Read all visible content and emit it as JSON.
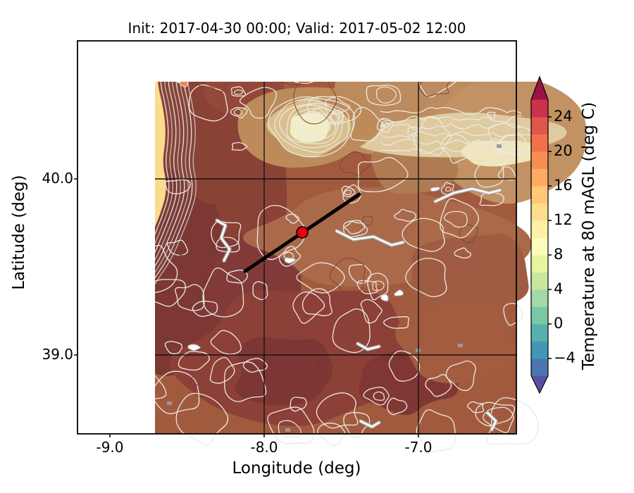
{
  "figure": {
    "title": "Init: 2017-04-30 00:00; Valid: 2017-05-02 12:00"
  },
  "axes": {
    "xlabel": "Longitude (deg)",
    "ylabel": "Latitude (deg)",
    "xticks": [
      "-9.0",
      "-8.0",
      "-7.0"
    ],
    "yticks": [
      "40.0",
      "39.0"
    ]
  },
  "colorbar": {
    "label": "Temperature at 80 mAGL (deg C)",
    "tick_labels": [
      "24",
      "20",
      "16",
      "12",
      "8",
      "4",
      "0",
      "−4"
    ],
    "tick_values": [
      24,
      20,
      16,
      12,
      8,
      4,
      0,
      -4
    ],
    "band_colors_bottom_to_top": [
      "#4a77b3",
      "#4197b5",
      "#58b2ab",
      "#79c8a5",
      "#a3d9a4",
      "#c8e79e",
      "#e7f5a2",
      "#fbfcba",
      "#fef0a5",
      "#fede8d",
      "#fec877",
      "#fdaa63",
      "#f98e55",
      "#f2714b",
      "#e25549",
      "#cb334d"
    ],
    "arrow_top_color": "#9c1148",
    "arrow_bottom_color": "#5852a4"
  },
  "chart_data": {
    "type": "heatmap",
    "subtype": "filled-contour-map",
    "title": "Init: 2017-04-30 00:00; Valid: 2017-05-02 12:00",
    "xlabel": "Longitude (deg)",
    "ylabel": "Latitude (deg)",
    "xlim": [
      -9.21,
      -6.33
    ],
    "ylim": [
      38.55,
      40.78
    ],
    "xticks": [
      -9.0,
      -8.0,
      -7.0
    ],
    "yticks": [
      40.0,
      39.0
    ],
    "grid": true,
    "colorbar": {
      "label": "Temperature at 80 mAGL (deg C)",
      "ticks": [
        24,
        20,
        16,
        12,
        8,
        4,
        0,
        -4
      ],
      "range": [
        -6,
        26
      ],
      "band_step": 2,
      "extend": "both",
      "colormap": "Spectral_r"
    },
    "field_summary": "Temperature at 80 m AGL: ~12-14 C (pale yellow) over the Atlantic along the west edge, ~16-18 C (orange) in a coastal patch near (-8.8, 38.8), ~18-26 C (tan to dark red-brown) over inland Iberia; dense white terrain/temperature contour lines; pale cool mountain cores near (-7.95, 40.3) and the north-east ridge",
    "overlays": {
      "cross_section_line": {
        "from_lonlat": [
          -8.12,
          39.47
        ],
        "to_lonlat": [
          -7.38,
          39.91
        ],
        "color": "#000000"
      },
      "marker": {
        "lonlat": [
          -7.75,
          39.7
        ],
        "shape": "circle",
        "fill": "#e8000b",
        "edge": "#000000"
      }
    },
    "map_colors": {
      "ocean": "#fbdc8c",
      "land_base": "#a25a3e",
      "dark_regions": [
        "#8a4136",
        "#7d3834",
        "#813a38",
        "#8c4038",
        "#7e3634",
        "#803734"
      ],
      "tan_regions": [
        "#bd8b60",
        "#c29264",
        "#b07a52"
      ],
      "pale_regions": [
        "#dfcb9f",
        "#efe4bb",
        "#d9c08e",
        "#f2efc3"
      ],
      "warm_orange": "#f6854c",
      "contour_light": "#ece9e1",
      "contour_dark": "#7a452f",
      "coast_line": "#b2afa8",
      "river": "#f7f7f7",
      "river_casing": "#9e9e9e",
      "town": "#999999",
      "gridline": "#141414"
    }
  }
}
